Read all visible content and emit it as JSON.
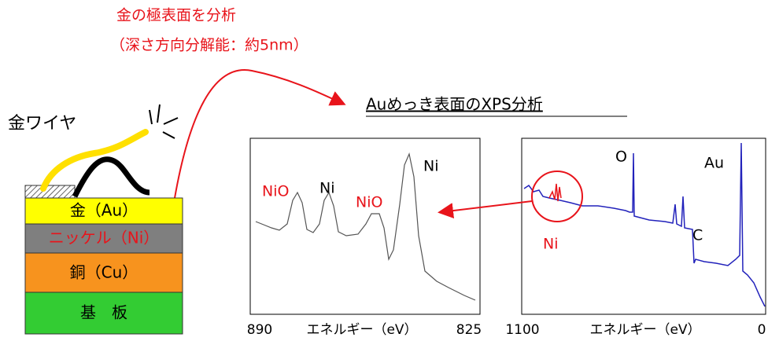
{
  "annotation": {
    "title": "金の極表面を分析",
    "subtitle": "（深さ方向分解能：約5nm）"
  },
  "wire_label": "金ワイヤ",
  "layers": [
    "金（Au）",
    "ニッケル（Ni）",
    "銅（Cu）",
    "基　板"
  ],
  "xps_title": "Auめっき表面のXPS分析",
  "detail_spectrum": {
    "peak_labels": [
      "NiO",
      "Ni",
      "NiO",
      "Ni"
    ],
    "x_label": "エネルギー（eV）",
    "x_start": "890",
    "x_end": "825"
  },
  "survey_spectrum": {
    "peak_labels": [
      "O",
      "Au",
      "C",
      "Ni"
    ],
    "x_label": "エネルギー（eV）",
    "x_start": "1100",
    "x_end": "0"
  }
}
